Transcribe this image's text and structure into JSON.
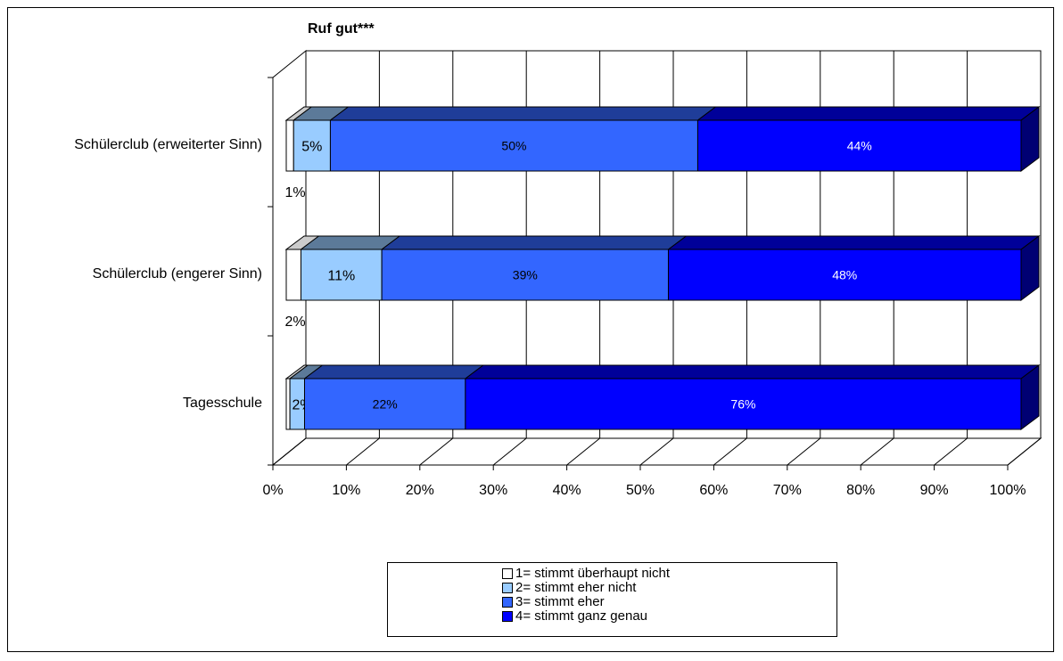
{
  "chart_data": {
    "type": "bar",
    "orientation": "horizontal",
    "stacked": "percent",
    "style": "3d",
    "title": "Ruf gut***",
    "categories": [
      "Schülerclub (erweiterter Sinn)",
      "Schülerclub (engerer Sinn)",
      "Tagesschule"
    ],
    "series": [
      {
        "name": "1= stimmt überhaupt nicht",
        "values": [
          1,
          2,
          0.5
        ],
        "labels": [
          "1%",
          "2%",
          ""
        ],
        "color": "#ffffff"
      },
      {
        "name": "2= stimmt eher nicht",
        "values": [
          5,
          11,
          2
        ],
        "labels": [
          "5%",
          "11%",
          "2%"
        ],
        "color": "#99ccff"
      },
      {
        "name": "3= stimmt eher",
        "values": [
          50,
          39,
          22
        ],
        "labels": [
          "50%",
          "39%",
          "22%"
        ],
        "color": "#3366ff"
      },
      {
        "name": "4= stimmt ganz genau",
        "values": [
          44,
          48,
          76
        ],
        "labels": [
          "44%",
          "48%",
          "76%"
        ],
        "color": "#0000ff"
      }
    ],
    "xticks": [
      "0%",
      "10%",
      "20%",
      "30%",
      "40%",
      "50%",
      "60%",
      "70%",
      "80%",
      "90%",
      "100%"
    ],
    "xlim": [
      0,
      100
    ],
    "grid": true,
    "legend_position": "bottom"
  }
}
